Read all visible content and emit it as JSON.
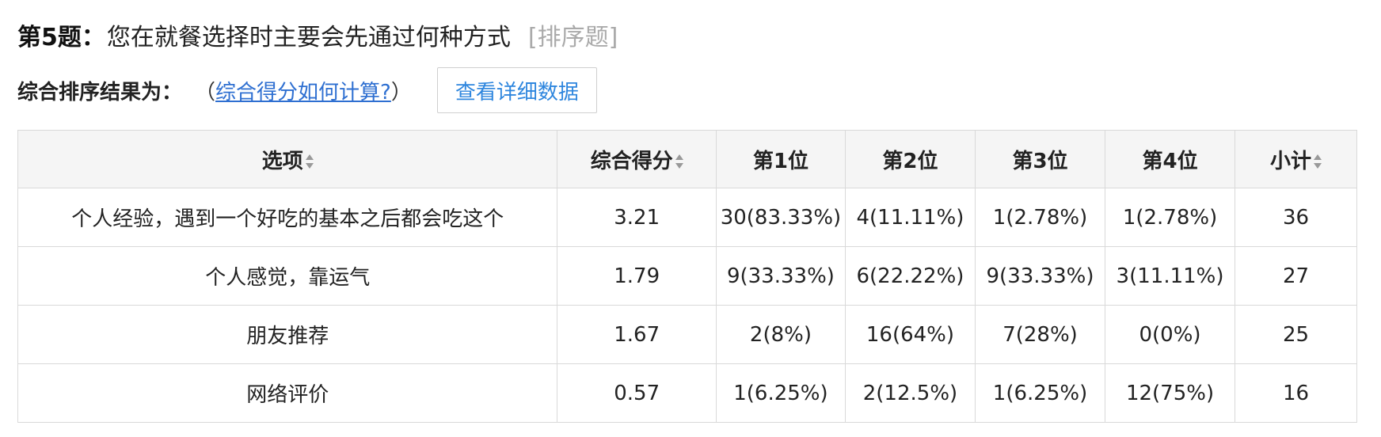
{
  "question": {
    "number_label": "第5题",
    "colon": "：",
    "text": "您在就餐选择时主要会先通过何种方式",
    "type_label": "[排序题]"
  },
  "summary": {
    "label": "综合排序结果为：",
    "paren_open": "（",
    "howto_link": "综合得分如何计算?",
    "paren_close": "）",
    "detail_button": "查看详细数据"
  },
  "table": {
    "headers": {
      "option": "选项",
      "score": "综合得分",
      "rank1": "第1位",
      "rank2": "第2位",
      "rank3": "第3位",
      "rank4": "第4位",
      "subtotal": "小计"
    },
    "rows": [
      {
        "option": "个人经验，遇到一个好吃的基本之后都会吃这个",
        "score": "3.21",
        "rank1": "30(83.33%)",
        "rank2": "4(11.11%)",
        "rank3": "1(2.78%)",
        "rank4": "1(2.78%)",
        "subtotal": "36"
      },
      {
        "option": "个人感觉，靠运气",
        "score": "1.79",
        "rank1": "9(33.33%)",
        "rank2": "6(22.22%)",
        "rank3": "9(33.33%)",
        "rank4": "3(11.11%)",
        "subtotal": "27"
      },
      {
        "option": "朋友推荐",
        "score": "1.67",
        "rank1": "2(8%)",
        "rank2": "16(64%)",
        "rank3": "7(28%)",
        "rank4": "0(0%)",
        "subtotal": "25"
      },
      {
        "option": "网络评价",
        "score": "0.57",
        "rank1": "1(6.25%)",
        "rank2": "2(12.5%)",
        "rank3": "1(6.25%)",
        "rank4": "12(75%)",
        "subtotal": "16"
      }
    ]
  },
  "colors": {
    "link": "#2e6fd1",
    "button_text": "#2e86de",
    "header_bg": "#f5f5f5",
    "border": "#d9d9d9",
    "type_label": "#aaaaaa"
  },
  "icons": {
    "sort": "sort-icon"
  }
}
